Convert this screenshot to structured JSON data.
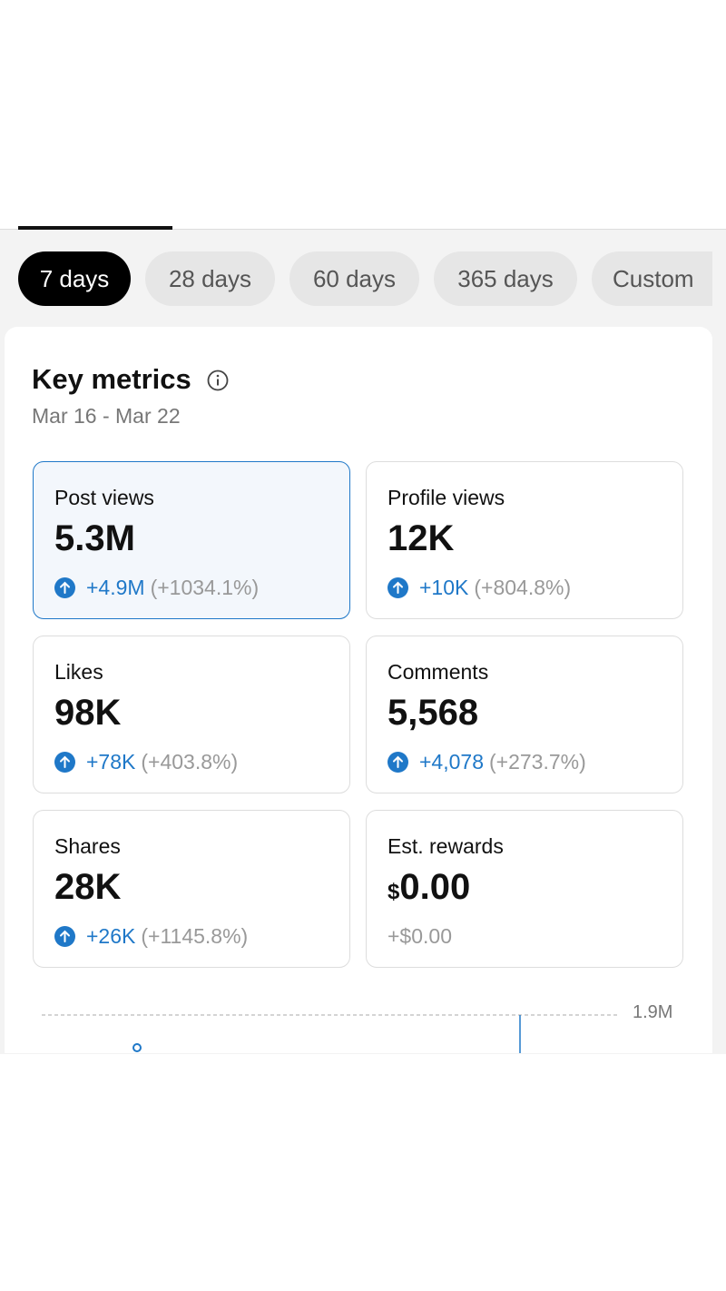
{
  "tabs": [
    "7 days",
    "28 days",
    "60 days",
    "365 days",
    "Custom"
  ],
  "selected_tab": 0,
  "section": {
    "title": "Key metrics",
    "date_range": "Mar 16 - Mar 22"
  },
  "metrics": [
    {
      "label": "Post views",
      "value": "5.3M",
      "change": "+4.9M",
      "percent": "(+1034.1%)"
    },
    {
      "label": "Profile views",
      "value": "12K",
      "change": "+10K",
      "percent": "(+804.8%)"
    },
    {
      "label": "Likes",
      "value": "98K",
      "change": "+78K",
      "percent": "(+403.8%)"
    },
    {
      "label": "Comments",
      "value": "5,568",
      "change": "+4,078",
      "percent": "(+273.7%)"
    },
    {
      "label": "Shares",
      "value": "28K",
      "change": "+26K",
      "percent": "(+1145.8%)"
    },
    {
      "label": "Est. rewards",
      "currency": "$",
      "value": "0.00",
      "change": "+$0.00"
    }
  ],
  "selected_metric": 0,
  "chart_fragment": {
    "axis_label": "1.9M"
  }
}
